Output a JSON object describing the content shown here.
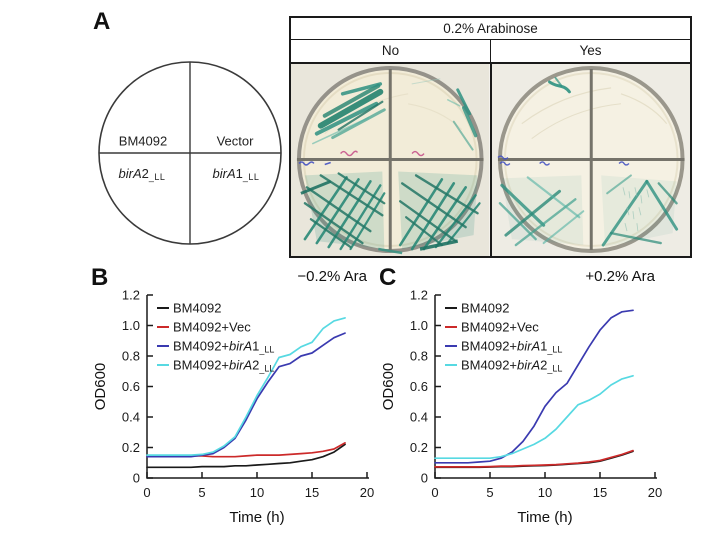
{
  "panelA": {
    "label": "A",
    "venn": {
      "top_left": "BM4092",
      "top_right": "Vector",
      "bottom_left": {
        "gene": "birA",
        "num": "2",
        "sub": "_LL"
      },
      "bottom_right": {
        "gene": "birA",
        "num": "1",
        "sub": "_LL"
      }
    },
    "table": {
      "header": "0.2% Arabinose",
      "col_no": "No",
      "col_yes": "Yes"
    }
  },
  "panelB": {
    "label": "B"
  },
  "panelC": {
    "label": "C"
  },
  "colors": {
    "curve_black": "#1a1a1a",
    "curve_red": "#cc2a2a",
    "curve_blue": "#3a3ab0",
    "curve_cyan": "#57d9e2",
    "colony_teal": "#2e9181"
  },
  "chart_data": [
    {
      "type": "line",
      "panel": "B",
      "title": "−0.2% Ara",
      "xlabel": "Time (h)",
      "ylabel": "OD600",
      "xlim": [
        0,
        20
      ],
      "ylim": [
        0,
        1.2
      ],
      "xticks": [
        0,
        5,
        10,
        15,
        20
      ],
      "xtick_labels": [
        "0",
        "5",
        "10",
        "15",
        "20"
      ],
      "yticks": [
        0,
        0.2,
        0.4,
        0.6,
        0.8,
        1.0,
        1.2
      ],
      "ytick_labels": [
        "0",
        "0.2",
        "0.4",
        "0.6",
        "0.8",
        "1.0",
        "1.2"
      ],
      "grid": false,
      "legend_position": "upper-left",
      "x": [
        0,
        1,
        2,
        3,
        4,
        5,
        6,
        7,
        8,
        9,
        10,
        11,
        12,
        13,
        14,
        15,
        16,
        17,
        18
      ],
      "series": [
        {
          "name": "BM4092",
          "color": "#1a1a1a",
          "values": [
            0.07,
            0.07,
            0.07,
            0.07,
            0.07,
            0.075,
            0.075,
            0.075,
            0.08,
            0.08,
            0.085,
            0.09,
            0.095,
            0.1,
            0.11,
            0.12,
            0.14,
            0.17,
            0.22
          ]
        },
        {
          "name": "BM4092+Vec",
          "color": "#cc2a2a",
          "values": [
            0.14,
            0.14,
            0.14,
            0.14,
            0.145,
            0.145,
            0.14,
            0.14,
            0.14,
            0.145,
            0.15,
            0.15,
            0.15,
            0.155,
            0.16,
            0.165,
            0.175,
            0.19,
            0.23
          ]
        },
        {
          "name": "BM4092+birA1_LL",
          "color": "#3a3ab0",
          "values": [
            0.14,
            0.14,
            0.14,
            0.14,
            0.14,
            0.15,
            0.16,
            0.2,
            0.26,
            0.38,
            0.52,
            0.63,
            0.73,
            0.75,
            0.8,
            0.82,
            0.87,
            0.92,
            0.95
          ]
        },
        {
          "name": "BM4092+birA2_LL",
          "color": "#57d9e2",
          "values": [
            0.15,
            0.15,
            0.15,
            0.15,
            0.15,
            0.155,
            0.17,
            0.21,
            0.27,
            0.4,
            0.54,
            0.66,
            0.79,
            0.81,
            0.86,
            0.89,
            0.98,
            1.03,
            1.05
          ]
        }
      ],
      "legend": [
        {
          "pre": "BM4092"
        },
        {
          "pre": "BM4092+Vec"
        },
        {
          "pre": "BM4092+",
          "gene": "birA",
          "num": "1",
          "sub": "_LL"
        },
        {
          "pre": "BM4092+",
          "gene": "birA",
          "num": "2",
          "sub": "_LL"
        }
      ]
    },
    {
      "type": "line",
      "panel": "C",
      "title": "+0.2% Ara",
      "xlabel": "Time (h)",
      "ylabel": "OD600",
      "xlim": [
        0,
        20
      ],
      "ylim": [
        0,
        1.2
      ],
      "xticks": [
        0,
        5,
        10,
        15,
        20
      ],
      "xtick_labels": [
        "0",
        "5",
        "10",
        "15",
        "20"
      ],
      "yticks": [
        0,
        0.2,
        0.4,
        0.6,
        0.8,
        1.0,
        1.2
      ],
      "ytick_labels": [
        "0",
        "0.2",
        "0.4",
        "0.6",
        "0.8",
        "1.0",
        "1.2"
      ],
      "grid": false,
      "legend_position": "upper-left",
      "x": [
        0,
        1,
        2,
        3,
        4,
        5,
        6,
        7,
        8,
        9,
        10,
        11,
        12,
        13,
        14,
        15,
        16,
        17,
        18
      ],
      "series": [
        {
          "name": "BM4092",
          "color": "#1a1a1a",
          "values": [
            0.07,
            0.07,
            0.07,
            0.07,
            0.07,
            0.072,
            0.075,
            0.075,
            0.078,
            0.08,
            0.082,
            0.085,
            0.09,
            0.095,
            0.1,
            0.11,
            0.13,
            0.15,
            0.175
          ]
        },
        {
          "name": "BM4092+Vec",
          "color": "#cc2a2a",
          "values": [
            0.073,
            0.073,
            0.073,
            0.073,
            0.073,
            0.075,
            0.078,
            0.078,
            0.081,
            0.083,
            0.085,
            0.088,
            0.093,
            0.098,
            0.105,
            0.115,
            0.135,
            0.155,
            0.18
          ]
        },
        {
          "name": "BM4092+birA1_LL",
          "color": "#3a3ab0",
          "values": [
            0.1,
            0.1,
            0.1,
            0.1,
            0.105,
            0.11,
            0.13,
            0.17,
            0.24,
            0.34,
            0.47,
            0.56,
            0.62,
            0.74,
            0.86,
            0.97,
            1.05,
            1.09,
            1.1
          ]
        },
        {
          "name": "BM4092+birA2_LL",
          "color": "#57d9e2",
          "values": [
            0.13,
            0.13,
            0.13,
            0.13,
            0.13,
            0.13,
            0.14,
            0.16,
            0.19,
            0.22,
            0.26,
            0.32,
            0.4,
            0.48,
            0.51,
            0.55,
            0.61,
            0.65,
            0.67
          ]
        }
      ],
      "legend": [
        {
          "pre": "BM4092"
        },
        {
          "pre": "BM4092+Vec"
        },
        {
          "pre": "BM4092+",
          "gene": "birA",
          "num": "1",
          "sub": "_LL"
        },
        {
          "pre": "BM4092+",
          "gene": "birA",
          "num": "2",
          "sub": "_LL"
        }
      ]
    }
  ]
}
